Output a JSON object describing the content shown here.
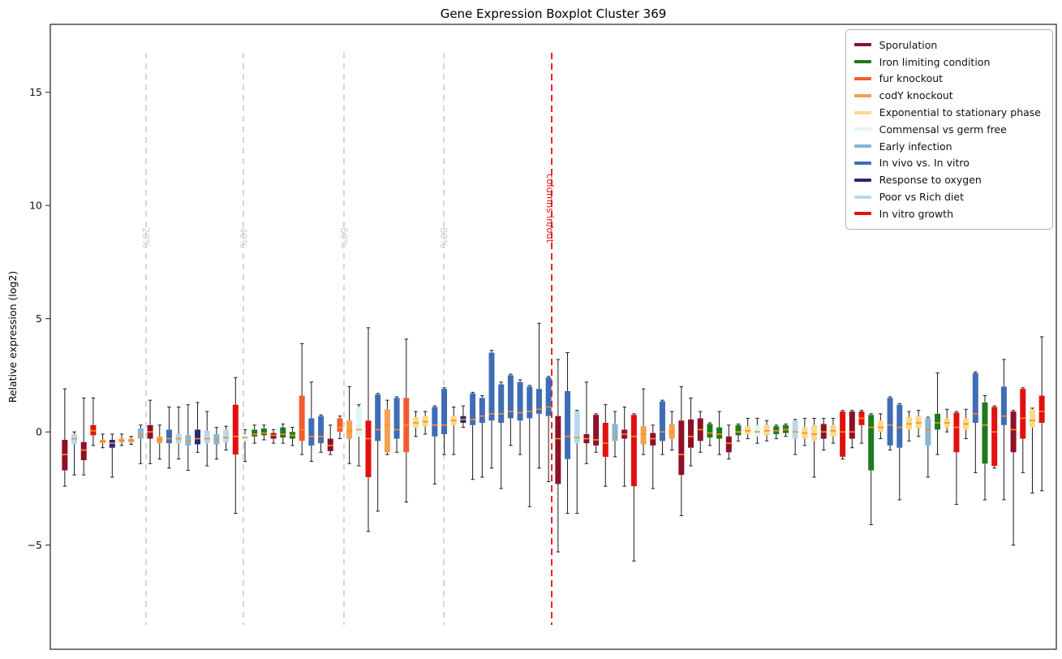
{
  "figure": {
    "title": "Gene Expression Boxplot Cluster 369",
    "ylabel": "Relative expression (log2)"
  },
  "legend": [
    {
      "key": "sporulation",
      "label": "Sporulation",
      "color": "#8f1029"
    },
    {
      "key": "iron",
      "label": "Iron limiting condition",
      "color": "#1e7a1e"
    },
    {
      "key": "fur",
      "label": "fur knockout",
      "color": "#f25c33"
    },
    {
      "key": "cody",
      "label": "codY knockout",
      "color": "#f5a04c"
    },
    {
      "key": "expo",
      "label": "Exponential to stationary phase",
      "color": "#fcd98a"
    },
    {
      "key": "commensal",
      "label": "Commensal vs germ free",
      "color": "#dff6f8"
    },
    {
      "key": "early",
      "label": "Early infection",
      "color": "#86b5d6"
    },
    {
      "key": "invivo",
      "label": "In vivo vs. In vitro",
      "color": "#3e6db5"
    },
    {
      "key": "oxygen",
      "label": "Response to oxygen",
      "color": "#28287d"
    },
    {
      "key": "poor_rich",
      "label": "Poor vs Rich diet",
      "color": "#b5d9ec"
    },
    {
      "key": "invitro",
      "label": "In vitro growth",
      "color": "#e31010"
    }
  ],
  "annotations": {
    "percent_lines": [
      {
        "label": "20%",
        "frac": 0.0952
      },
      {
        "label": "40%",
        "frac": 0.1919
      },
      {
        "label": "60%",
        "frac": 0.2919
      },
      {
        "label": "80%",
        "frac": 0.3911
      }
    ],
    "cutoff": {
      "label": "columns in/out",
      "frac": 0.4984,
      "color": "#dd1111"
    },
    "gridline_color": "#cccccc"
  },
  "chart_data": {
    "type": "boxplot",
    "title": "Gene Expression Boxplot Cluster 369",
    "ylabel": "Relative expression (log2)",
    "ylim": [
      -9.6,
      18.0
    ],
    "yticks": [
      -5,
      0,
      5,
      10,
      15
    ],
    "median_color": "#ff8c1a",
    "box_value_order": [
      "low_whisker",
      "q1",
      "median",
      "q3",
      "high_whisker"
    ],
    "boxes": [
      {
        "g": "sporulation",
        "v": [
          -2.4,
          -1.7,
          -1.0,
          -0.35,
          1.9
        ]
      },
      {
        "g": "poor_rich",
        "v": [
          -1.9,
          -0.55,
          -0.3,
          -0.1,
          0.0
        ]
      },
      {
        "g": "sporulation",
        "v": [
          -1.9,
          -1.25,
          -0.8,
          -0.45,
          1.5
        ]
      },
      {
        "g": "invitro",
        "v": [
          -0.6,
          -0.15,
          0.05,
          0.3,
          1.5
        ]
      },
      {
        "g": "cody",
        "v": [
          -0.7,
          -0.5,
          -0.42,
          -0.35,
          -0.1
        ]
      },
      {
        "g": "oxygen",
        "v": [
          -2.0,
          -0.7,
          -0.5,
          -0.35,
          -0.1
        ]
      },
      {
        "g": "cody",
        "v": [
          -0.6,
          -0.45,
          -0.4,
          -0.3,
          -0.1
        ]
      },
      {
        "g": "cody",
        "v": [
          -0.55,
          -0.45,
          -0.38,
          -0.3,
          -0.2
        ]
      },
      {
        "g": "early",
        "v": [
          -1.4,
          -0.3,
          -0.1,
          0.15,
          0.3
        ]
      },
      {
        "g": "sporulation",
        "v": [
          -1.4,
          -0.3,
          0.0,
          0.3,
          1.4
        ]
      },
      {
        "g": "cody",
        "v": [
          -1.2,
          -0.5,
          -0.35,
          -0.2,
          0.3
        ]
      },
      {
        "g": "invivo",
        "v": [
          -1.6,
          -0.5,
          -0.3,
          0.1,
          1.1
        ]
      },
      {
        "g": "poor_rich",
        "v": [
          -1.2,
          -0.5,
          -0.3,
          -0.1,
          1.1
        ]
      },
      {
        "g": "early",
        "v": [
          -1.7,
          -0.6,
          -0.4,
          -0.15,
          1.2
        ]
      },
      {
        "g": "oxygen",
        "v": [
          -0.9,
          -0.55,
          -0.3,
          0.1,
          1.3
        ]
      },
      {
        "g": "poor_rich",
        "v": [
          -1.5,
          -0.5,
          -0.3,
          0.05,
          0.9
        ]
      },
      {
        "g": "early",
        "v": [
          -1.2,
          -0.55,
          -0.35,
          -0.1,
          0.2
        ]
      },
      {
        "g": "poor_rich",
        "v": [
          -0.8,
          -0.45,
          -0.25,
          0.1,
          0.25
        ]
      },
      {
        "g": "invitro",
        "v": [
          -3.6,
          -1.0,
          -0.2,
          1.2,
          2.4
        ]
      },
      {
        "g": "commensal",
        "v": [
          -1.3,
          -0.4,
          -0.25,
          -0.1,
          0.1
        ]
      },
      {
        "g": "iron",
        "v": [
          -0.5,
          -0.2,
          -0.1,
          0.1,
          0.3
        ]
      },
      {
        "g": "iron",
        "v": [
          -0.35,
          -0.15,
          -0.05,
          0.15,
          0.3
        ]
      },
      {
        "g": "sporulation",
        "v": [
          -0.5,
          -0.3,
          -0.15,
          -0.05,
          0.1
        ]
      },
      {
        "g": "iron",
        "v": [
          -0.5,
          -0.25,
          -0.1,
          0.2,
          0.35
        ]
      },
      {
        "g": "iron",
        "v": [
          -0.6,
          -0.3,
          -0.15,
          0.0,
          0.2
        ]
      },
      {
        "g": "fur",
        "v": [
          -1.0,
          -0.4,
          0.1,
          1.6,
          3.9
        ]
      },
      {
        "g": "invivo",
        "v": [
          -1.3,
          -0.6,
          -0.2,
          0.6,
          2.2
        ]
      },
      {
        "g": "invivo",
        "v": [
          -0.9,
          -0.5,
          -0.2,
          0.7,
          0.75
        ]
      },
      {
        "g": "sporulation",
        "v": [
          -1.0,
          -0.85,
          -0.6,
          -0.3,
          0.3
        ]
      },
      {
        "g": "fur",
        "v": [
          -0.3,
          0.0,
          0.2,
          0.6,
          0.7
        ]
      },
      {
        "g": "cody",
        "v": [
          -1.4,
          -0.3,
          0.05,
          0.5,
          2.0
        ]
      },
      {
        "g": "commensal",
        "v": [
          -1.5,
          -0.2,
          0.1,
          1.1,
          1.2
        ]
      },
      {
        "g": "invitro",
        "v": [
          -4.4,
          -2.0,
          -0.3,
          0.5,
          4.6
        ]
      },
      {
        "g": "invivo",
        "v": [
          -3.5,
          -0.4,
          0.1,
          1.65,
          1.7
        ]
      },
      {
        "g": "cody",
        "v": [
          -1.0,
          -0.9,
          0.3,
          1.0,
          1.4
        ]
      },
      {
        "g": "invivo",
        "v": [
          -0.9,
          -0.3,
          0.1,
          1.5,
          1.55
        ]
      },
      {
        "g": "fur",
        "v": [
          -3.1,
          -0.9,
          0.3,
          1.5,
          4.1
        ]
      },
      {
        "g": "expo",
        "v": [
          -0.2,
          0.2,
          0.4,
          0.65,
          0.9
        ]
      },
      {
        "g": "expo",
        "v": [
          -0.1,
          0.25,
          0.45,
          0.7,
          0.9
        ]
      },
      {
        "g": "invivo",
        "v": [
          -2.3,
          -0.2,
          0.3,
          1.1,
          1.15
        ]
      },
      {
        "g": "invivo",
        "v": [
          -1.0,
          -0.1,
          0.3,
          1.9,
          1.95
        ]
      },
      {
        "g": "expo",
        "v": [
          -1.0,
          0.3,
          0.5,
          0.7,
          1.1
        ]
      },
      {
        "g": "oxygen",
        "v": [
          0.2,
          0.4,
          0.55,
          0.7,
          1.15
        ]
      },
      {
        "g": "invivo",
        "v": [
          -2.1,
          0.3,
          0.55,
          1.7,
          1.75
        ]
      },
      {
        "g": "invivo",
        "v": [
          -2.0,
          0.4,
          0.7,
          1.5,
          1.6
        ]
      },
      {
        "g": "invivo",
        "v": [
          -1.6,
          0.5,
          0.8,
          3.5,
          3.6
        ]
      },
      {
        "g": "invivo",
        "v": [
          -2.5,
          0.4,
          0.8,
          2.1,
          2.2
        ]
      },
      {
        "g": "invivo",
        "v": [
          -0.6,
          0.6,
          0.9,
          2.5,
          2.55
        ]
      },
      {
        "g": "invivo",
        "v": [
          -1.0,
          0.5,
          0.85,
          2.2,
          2.3
        ]
      },
      {
        "g": "invivo",
        "v": [
          -3.3,
          0.6,
          0.9,
          2.0,
          2.05
        ]
      },
      {
        "g": "invivo",
        "v": [
          -1.6,
          0.8,
          1.0,
          1.9,
          4.8
        ]
      },
      {
        "g": "invivo",
        "v": [
          -2.2,
          0.7,
          1.1,
          2.4,
          2.45
        ]
      },
      {
        "g": "sporulation",
        "v": [
          -5.3,
          -2.3,
          -0.3,
          0.7,
          3.2
        ]
      },
      {
        "g": "invivo",
        "v": [
          -3.6,
          -1.2,
          -0.2,
          1.8,
          3.5
        ]
      },
      {
        "g": "poor_rich",
        "v": [
          -3.6,
          -0.5,
          -0.25,
          0.9,
          0.95
        ]
      },
      {
        "g": "sporulation",
        "v": [
          -1.4,
          -0.5,
          -0.3,
          -0.1,
          2.2
        ]
      },
      {
        "g": "sporulation",
        "v": [
          -0.9,
          -0.6,
          -0.35,
          0.75,
          0.8
        ]
      },
      {
        "g": "invitro",
        "v": [
          -2.4,
          -1.1,
          -0.5,
          0.4,
          1.2
        ]
      },
      {
        "g": "early",
        "v": [
          -1.1,
          -0.4,
          -0.2,
          0.35,
          0.9
        ]
      },
      {
        "g": "sporulation",
        "v": [
          -2.4,
          -0.3,
          -0.1,
          0.1,
          1.1
        ]
      },
      {
        "g": "invitro",
        "v": [
          -5.7,
          -2.4,
          -0.2,
          0.75,
          0.8
        ]
      },
      {
        "g": "cody",
        "v": [
          -1.0,
          -0.55,
          -0.1,
          0.25,
          1.9
        ]
      },
      {
        "g": "sporulation",
        "v": [
          -2.5,
          -0.6,
          -0.3,
          -0.05,
          0.3
        ]
      },
      {
        "g": "invivo",
        "v": [
          -1.0,
          -0.4,
          0.0,
          1.35,
          1.4
        ]
      },
      {
        "g": "cody",
        "v": [
          -0.8,
          -0.3,
          0.0,
          0.35,
          0.9
        ]
      },
      {
        "g": "sporulation",
        "v": [
          -3.7,
          -1.9,
          -1.0,
          0.5,
          2.0
        ]
      },
      {
        "g": "sporulation",
        "v": [
          -1.5,
          -0.7,
          -0.2,
          0.55,
          1.5
        ]
      },
      {
        "g": "sporulation",
        "v": [
          -0.9,
          -0.4,
          0.1,
          0.6,
          0.9
        ]
      },
      {
        "g": "iron",
        "v": [
          -0.6,
          -0.25,
          -0.05,
          0.35,
          0.4
        ]
      },
      {
        "g": "iron",
        "v": [
          -1.0,
          -0.3,
          -0.1,
          0.2,
          0.9
        ]
      },
      {
        "g": "sporulation",
        "v": [
          -1.2,
          -0.9,
          -0.5,
          -0.2,
          0.3
        ]
      },
      {
        "g": "iron",
        "v": [
          -0.4,
          -0.15,
          0.0,
          0.3,
          0.35
        ]
      },
      {
        "g": "expo",
        "v": [
          -0.3,
          -0.1,
          0.05,
          0.25,
          0.6
        ]
      },
      {
        "g": "commensal",
        "v": [
          -0.5,
          -0.2,
          0.0,
          0.3,
          0.6
        ]
      },
      {
        "g": "expo",
        "v": [
          -0.4,
          -0.15,
          0.05,
          0.3,
          0.5
        ]
      },
      {
        "g": "iron",
        "v": [
          -0.3,
          -0.1,
          0.05,
          0.25,
          0.3
        ]
      },
      {
        "g": "iron",
        "v": [
          -0.2,
          -0.05,
          0.1,
          0.3,
          0.35
        ]
      },
      {
        "g": "poor_rich",
        "v": [
          -1.0,
          -0.3,
          0.0,
          0.5,
          0.55
        ]
      },
      {
        "g": "expo",
        "v": [
          -0.6,
          -0.3,
          -0.05,
          0.2,
          0.6
        ]
      },
      {
        "g": "expo",
        "v": [
          -2.0,
          -0.4,
          -0.1,
          0.3,
          0.6
        ]
      },
      {
        "g": "sporulation",
        "v": [
          -0.8,
          -0.3,
          0.0,
          0.35,
          0.6
        ]
      },
      {
        "g": "expo",
        "v": [
          -0.5,
          -0.2,
          0.05,
          0.3,
          0.6
        ]
      },
      {
        "g": "invitro",
        "v": [
          -1.2,
          -1.1,
          0.0,
          0.9,
          0.95
        ]
      },
      {
        "g": "sporulation",
        "v": [
          -0.7,
          -0.3,
          0.0,
          0.9,
          0.95
        ]
      },
      {
        "g": "invitro",
        "v": [
          -0.5,
          0.3,
          0.6,
          0.9,
          0.95
        ]
      },
      {
        "g": "iron",
        "v": [
          -4.1,
          -1.7,
          0.2,
          0.75,
          0.8
        ]
      },
      {
        "g": "expo",
        "v": [
          -0.3,
          0.0,
          0.2,
          0.5,
          0.8
        ]
      },
      {
        "g": "invivo",
        "v": [
          -0.8,
          -0.6,
          0.3,
          1.5,
          1.55
        ]
      },
      {
        "g": "invivo",
        "v": [
          -3.0,
          -0.7,
          0.2,
          1.2,
          1.25
        ]
      },
      {
        "g": "expo",
        "v": [
          -0.4,
          0.1,
          0.35,
          0.65,
          0.9
        ]
      },
      {
        "g": "expo",
        "v": [
          -0.2,
          0.15,
          0.4,
          0.7,
          0.95
        ]
      },
      {
        "g": "early",
        "v": [
          -2.0,
          -0.6,
          0.1,
          0.6,
          0.65
        ]
      },
      {
        "g": "iron",
        "v": [
          -1.0,
          0.1,
          0.4,
          0.8,
          2.6
        ]
      },
      {
        "g": "expo",
        "v": [
          0.0,
          0.2,
          0.4,
          0.6,
          1.0
        ]
      },
      {
        "g": "invitro",
        "v": [
          -3.2,
          -0.9,
          0.2,
          0.85,
          0.9
        ]
      },
      {
        "g": "expo",
        "v": [
          -0.3,
          0.1,
          0.35,
          0.6,
          1.0
        ]
      },
      {
        "g": "invivo",
        "v": [
          -1.8,
          0.4,
          0.8,
          2.6,
          2.65
        ]
      },
      {
        "g": "iron",
        "v": [
          -3.0,
          -1.4,
          0.3,
          1.3,
          1.6
        ]
      },
      {
        "g": "invitro",
        "v": [
          -1.6,
          -1.5,
          0.0,
          1.1,
          1.15
        ]
      },
      {
        "g": "invivo",
        "v": [
          -3.0,
          0.3,
          0.7,
          2.0,
          3.2
        ]
      },
      {
        "g": "sporulation",
        "v": [
          -5.0,
          -0.9,
          0.1,
          0.9,
          0.95
        ]
      },
      {
        "g": "invitro",
        "v": [
          -1.8,
          -0.3,
          0.6,
          1.9,
          1.95
        ]
      },
      {
        "g": "expo",
        "v": [
          -2.7,
          0.2,
          0.5,
          1.0,
          1.05
        ]
      },
      {
        "g": "invitro",
        "v": [
          -2.6,
          0.4,
          0.9,
          1.6,
          4.2
        ]
      }
    ]
  }
}
